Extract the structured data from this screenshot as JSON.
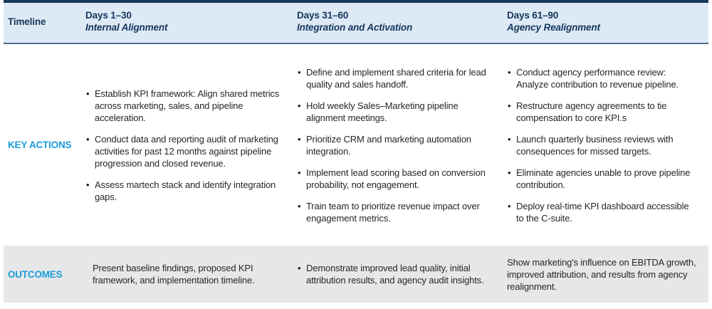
{
  "colors": {
    "navy": "#16365c",
    "accent": "#1b9cd9",
    "header_bg": "#ddeaf6",
    "outcomes_bg": "#e6e7e9",
    "body_text": "#262626",
    "separator": "#4f6d8d"
  },
  "header": {
    "row_label": "Timeline",
    "columns": [
      {
        "days": "Days 1–30",
        "phase": "Internal Alignment"
      },
      {
        "days": "Days 31–60",
        "phase": "Integration and Activation"
      },
      {
        "days": "Days 61–90",
        "phase": "Agency Realignment"
      }
    ]
  },
  "key_actions": {
    "row_label": "KEY ACTIONS",
    "columns": [
      {
        "bullets": [
          "Establish KPI framework: Align shared metrics across marketing, sales, and pipeline acceleration.",
          "Conduct data and reporting audit of marketing activities for past 12 months against pipeline progression and closed revenue.",
          "Assess martech stack and identify integration gaps."
        ]
      },
      {
        "bullets": [
          "Define and implement shared criteria for lead quality and sales handoff.",
          "Hold weekly Sales–Marketing pipeline alignment meetings.",
          "Prioritize CRM and marketing automation integration.",
          "Implement lead scoring based on conversion probability, not engagement.",
          "Train team to prioritize revenue impact over engagement metrics."
        ]
      },
      {
        "bullets": [
          "Conduct agency performance review: Analyze contribution to revenue pipeline.",
          "Restructure agency agreements to tie compensation to core KPI.s",
          "Launch quarterly business reviews with consequences for missed targets.",
          "Eliminate agencies unable to prove pipeline contribution.",
          "Deploy real-time KPI dashboard accessible to the C-suite."
        ]
      }
    ]
  },
  "outcomes": {
    "row_label": "OUTCOMES",
    "columns": [
      {
        "text": "Present baseline findings, proposed KPI framework, and implementation timeline.",
        "bulleted": false
      },
      {
        "text": "Demonstrate improved lead quality, initial attribution results, and agency audit insights.",
        "bulleted": true
      },
      {
        "text": "Show marketing's influence on EBITDA growth, improved attribution, and results from agency realignment.",
        "bulleted": false
      }
    ]
  }
}
